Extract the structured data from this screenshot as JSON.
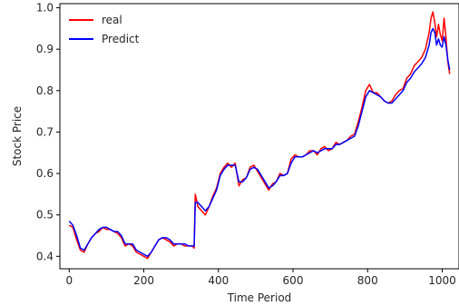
{
  "chart_data": {
    "type": "line",
    "title": "",
    "xlabel": "Time Period",
    "ylabel": "Stock Price",
    "xlim": [
      -25,
      1045
    ],
    "ylim": [
      0.37,
      1.01
    ],
    "xticks": [
      0,
      200,
      400,
      600,
      800,
      1000
    ],
    "yticks": [
      0.4,
      0.5,
      0.6,
      0.7,
      0.8,
      0.9,
      1.0
    ],
    "grid": false,
    "legend_position": "upper-left",
    "series": [
      {
        "name": "real",
        "color": "#ff0000",
        "points": [
          [
            0,
            0.475
          ],
          [
            10,
            0.47
          ],
          [
            20,
            0.44
          ],
          [
            30,
            0.415
          ],
          [
            40,
            0.41
          ],
          [
            50,
            0.43
          ],
          [
            60,
            0.445
          ],
          [
            70,
            0.455
          ],
          [
            80,
            0.46
          ],
          [
            90,
            0.47
          ],
          [
            100,
            0.465
          ],
          [
            110,
            0.465
          ],
          [
            120,
            0.46
          ],
          [
            130,
            0.455
          ],
          [
            140,
            0.445
          ],
          [
            150,
            0.425
          ],
          [
            160,
            0.43
          ],
          [
            170,
            0.425
          ],
          [
            180,
            0.41
          ],
          [
            190,
            0.405
          ],
          [
            200,
            0.4
          ],
          [
            210,
            0.395
          ],
          [
            220,
            0.41
          ],
          [
            230,
            0.425
          ],
          [
            240,
            0.44
          ],
          [
            250,
            0.445
          ],
          [
            260,
            0.44
          ],
          [
            270,
            0.435
          ],
          [
            280,
            0.425
          ],
          [
            290,
            0.43
          ],
          [
            300,
            0.43
          ],
          [
            310,
            0.425
          ],
          [
            320,
            0.425
          ],
          [
            330,
            0.425
          ],
          [
            335,
            0.42
          ],
          [
            338,
            0.55
          ],
          [
            345,
            0.52
          ],
          [
            355,
            0.51
          ],
          [
            365,
            0.5
          ],
          [
            375,
            0.52
          ],
          [
            385,
            0.545
          ],
          [
            395,
            0.565
          ],
          [
            405,
            0.6
          ],
          [
            415,
            0.615
          ],
          [
            425,
            0.625
          ],
          [
            435,
            0.615
          ],
          [
            445,
            0.625
          ],
          [
            455,
            0.57
          ],
          [
            465,
            0.585
          ],
          [
            475,
            0.59
          ],
          [
            485,
            0.615
          ],
          [
            495,
            0.62
          ],
          [
            505,
            0.605
          ],
          [
            515,
            0.59
          ],
          [
            525,
            0.575
          ],
          [
            535,
            0.56
          ],
          [
            545,
            0.575
          ],
          [
            555,
            0.58
          ],
          [
            565,
            0.6
          ],
          [
            575,
            0.595
          ],
          [
            585,
            0.6
          ],
          [
            595,
            0.635
          ],
          [
            605,
            0.645
          ],
          [
            615,
            0.64
          ],
          [
            625,
            0.64
          ],
          [
            635,
            0.645
          ],
          [
            645,
            0.655
          ],
          [
            655,
            0.655
          ],
          [
            665,
            0.645
          ],
          [
            675,
            0.66
          ],
          [
            685,
            0.665
          ],
          [
            695,
            0.655
          ],
          [
            705,
            0.66
          ],
          [
            715,
            0.675
          ],
          [
            725,
            0.67
          ],
          [
            735,
            0.675
          ],
          [
            745,
            0.68
          ],
          [
            755,
            0.69
          ],
          [
            765,
            0.695
          ],
          [
            775,
            0.725
          ],
          [
            785,
            0.76
          ],
          [
            795,
            0.8
          ],
          [
            805,
            0.815
          ],
          [
            815,
            0.795
          ],
          [
            825,
            0.795
          ],
          [
            835,
            0.785
          ],
          [
            845,
            0.775
          ],
          [
            855,
            0.77
          ],
          [
            865,
            0.775
          ],
          [
            875,
            0.79
          ],
          [
            885,
            0.8
          ],
          [
            895,
            0.805
          ],
          [
            905,
            0.83
          ],
          [
            915,
            0.84
          ],
          [
            925,
            0.86
          ],
          [
            935,
            0.87
          ],
          [
            945,
            0.88
          ],
          [
            955,
            0.9
          ],
          [
            965,
            0.94
          ],
          [
            970,
            0.975
          ],
          [
            975,
            0.99
          ],
          [
            980,
            0.965
          ],
          [
            985,
            0.93
          ],
          [
            990,
            0.96
          ],
          [
            995,
            0.935
          ],
          [
            1000,
            0.92
          ],
          [
            1005,
            0.975
          ],
          [
            1010,
            0.93
          ],
          [
            1015,
            0.87
          ],
          [
            1020,
            0.84
          ]
        ]
      },
      {
        "name": "Predict",
        "color": "#0000ff",
        "points": [
          [
            0,
            0.485
          ],
          [
            10,
            0.475
          ],
          [
            20,
            0.45
          ],
          [
            30,
            0.42
          ],
          [
            40,
            0.415
          ],
          [
            50,
            0.43
          ],
          [
            60,
            0.445
          ],
          [
            70,
            0.455
          ],
          [
            80,
            0.465
          ],
          [
            90,
            0.47
          ],
          [
            100,
            0.47
          ],
          [
            110,
            0.465
          ],
          [
            120,
            0.46
          ],
          [
            130,
            0.46
          ],
          [
            140,
            0.45
          ],
          [
            150,
            0.43
          ],
          [
            160,
            0.43
          ],
          [
            170,
            0.43
          ],
          [
            180,
            0.415
          ],
          [
            190,
            0.41
          ],
          [
            200,
            0.405
          ],
          [
            210,
            0.4
          ],
          [
            220,
            0.41
          ],
          [
            230,
            0.425
          ],
          [
            240,
            0.44
          ],
          [
            250,
            0.445
          ],
          [
            260,
            0.445
          ],
          [
            270,
            0.44
          ],
          [
            280,
            0.43
          ],
          [
            290,
            0.43
          ],
          [
            300,
            0.43
          ],
          [
            310,
            0.43
          ],
          [
            320,
            0.425
          ],
          [
            330,
            0.425
          ],
          [
            335,
            0.425
          ],
          [
            338,
            0.53
          ],
          [
            345,
            0.53
          ],
          [
            355,
            0.52
          ],
          [
            365,
            0.51
          ],
          [
            375,
            0.52
          ],
          [
            385,
            0.54
          ],
          [
            395,
            0.56
          ],
          [
            405,
            0.595
          ],
          [
            415,
            0.61
          ],
          [
            425,
            0.62
          ],
          [
            435,
            0.62
          ],
          [
            445,
            0.62
          ],
          [
            455,
            0.58
          ],
          [
            465,
            0.58
          ],
          [
            475,
            0.59
          ],
          [
            485,
            0.61
          ],
          [
            495,
            0.615
          ],
          [
            505,
            0.61
          ],
          [
            515,
            0.595
          ],
          [
            525,
            0.58
          ],
          [
            535,
            0.565
          ],
          [
            545,
            0.57
          ],
          [
            555,
            0.58
          ],
          [
            565,
            0.595
          ],
          [
            575,
            0.595
          ],
          [
            585,
            0.6
          ],
          [
            595,
            0.625
          ],
          [
            605,
            0.64
          ],
          [
            615,
            0.64
          ],
          [
            625,
            0.64
          ],
          [
            635,
            0.645
          ],
          [
            645,
            0.65
          ],
          [
            655,
            0.655
          ],
          [
            665,
            0.65
          ],
          [
            675,
            0.655
          ],
          [
            685,
            0.66
          ],
          [
            695,
            0.66
          ],
          [
            705,
            0.66
          ],
          [
            715,
            0.67
          ],
          [
            725,
            0.67
          ],
          [
            735,
            0.675
          ],
          [
            745,
            0.68
          ],
          [
            755,
            0.685
          ],
          [
            765,
            0.69
          ],
          [
            775,
            0.715
          ],
          [
            785,
            0.75
          ],
          [
            795,
            0.785
          ],
          [
            805,
            0.8
          ],
          [
            815,
            0.795
          ],
          [
            825,
            0.79
          ],
          [
            835,
            0.785
          ],
          [
            845,
            0.775
          ],
          [
            855,
            0.77
          ],
          [
            865,
            0.77
          ],
          [
            875,
            0.78
          ],
          [
            885,
            0.79
          ],
          [
            895,
            0.8
          ],
          [
            905,
            0.82
          ],
          [
            915,
            0.83
          ],
          [
            925,
            0.845
          ],
          [
            935,
            0.855
          ],
          [
            945,
            0.865
          ],
          [
            955,
            0.88
          ],
          [
            965,
            0.91
          ],
          [
            970,
            0.94
          ],
          [
            975,
            0.95
          ],
          [
            980,
            0.94
          ],
          [
            985,
            0.91
          ],
          [
            990,
            0.925
          ],
          [
            995,
            0.91
          ],
          [
            1000,
            0.905
          ],
          [
            1005,
            0.93
          ],
          [
            1010,
            0.91
          ],
          [
            1015,
            0.875
          ],
          [
            1020,
            0.85
          ]
        ]
      }
    ]
  }
}
